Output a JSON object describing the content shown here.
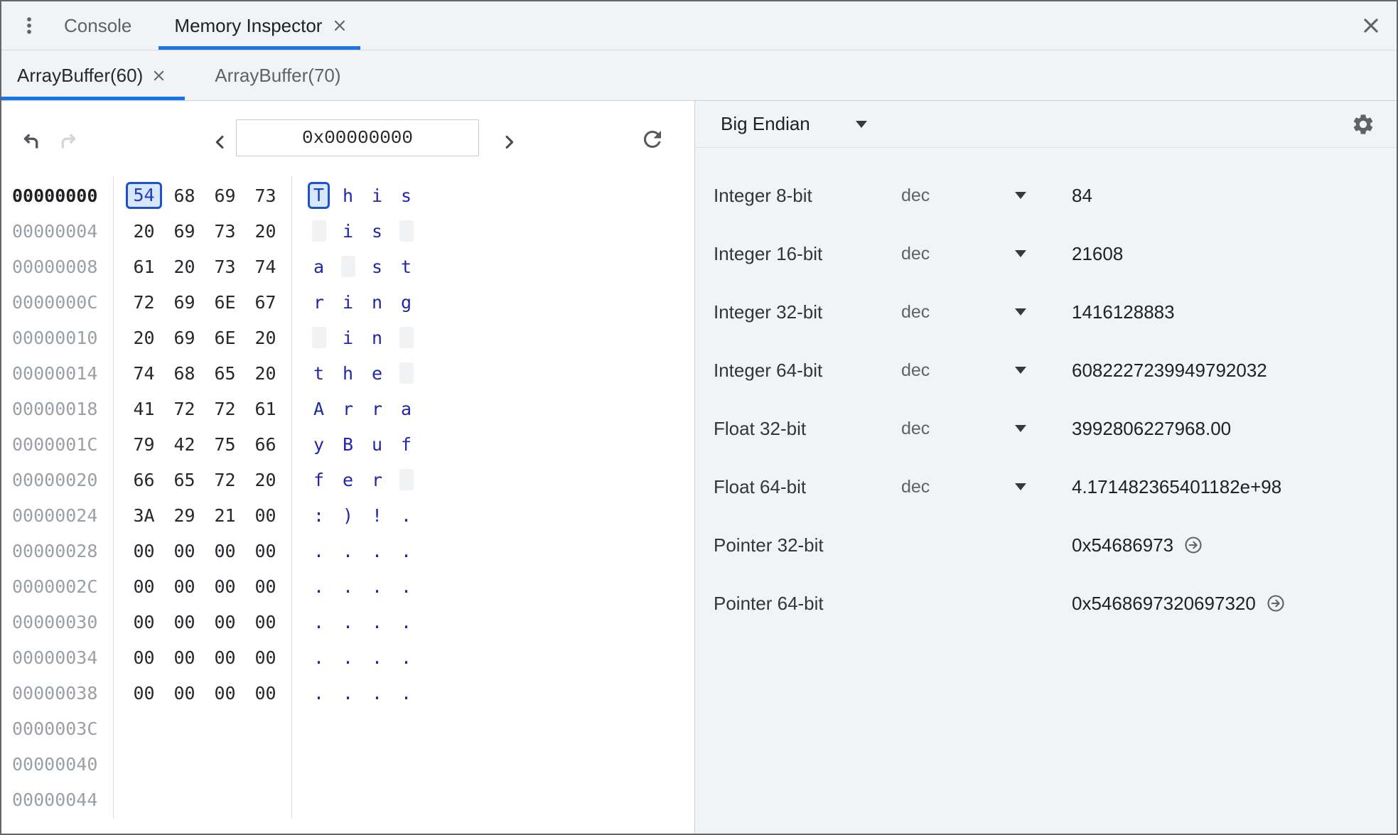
{
  "drawer_tabs": {
    "tabs": [
      {
        "label": "Console",
        "active": false,
        "closable": false
      },
      {
        "label": "Memory Inspector",
        "active": true,
        "closable": true
      }
    ]
  },
  "buffer_tabs": [
    {
      "label": "ArrayBuffer(60)",
      "active": true,
      "closable": true
    },
    {
      "label": "ArrayBuffer(70)",
      "active": false,
      "closable": false
    }
  ],
  "toolbar": {
    "address": "0x00000000"
  },
  "hex_view": {
    "rows": [
      {
        "address": "00000000",
        "bytes": [
          "54",
          "68",
          "69",
          "73"
        ],
        "ascii": [
          "T",
          "h",
          "i",
          "s"
        ],
        "selected": 0
      },
      {
        "address": "00000004",
        "bytes": [
          "20",
          "69",
          "73",
          "20"
        ],
        "ascii": [
          " ",
          "i",
          "s",
          " "
        ]
      },
      {
        "address": "00000008",
        "bytes": [
          "61",
          "20",
          "73",
          "74"
        ],
        "ascii": [
          "a",
          " ",
          "s",
          "t"
        ]
      },
      {
        "address": "0000000C",
        "bytes": [
          "72",
          "69",
          "6E",
          "67"
        ],
        "ascii": [
          "r",
          "i",
          "n",
          "g"
        ]
      },
      {
        "address": "00000010",
        "bytes": [
          "20",
          "69",
          "6E",
          "20"
        ],
        "ascii": [
          " ",
          "i",
          "n",
          " "
        ]
      },
      {
        "address": "00000014",
        "bytes": [
          "74",
          "68",
          "65",
          "20"
        ],
        "ascii": [
          "t",
          "h",
          "e",
          " "
        ]
      },
      {
        "address": "00000018",
        "bytes": [
          "41",
          "72",
          "72",
          "61"
        ],
        "ascii": [
          "A",
          "r",
          "r",
          "a"
        ]
      },
      {
        "address": "0000001C",
        "bytes": [
          "79",
          "42",
          "75",
          "66"
        ],
        "ascii": [
          "y",
          "B",
          "u",
          "f"
        ]
      },
      {
        "address": "00000020",
        "bytes": [
          "66",
          "65",
          "72",
          "20"
        ],
        "ascii": [
          "f",
          "e",
          "r",
          " "
        ]
      },
      {
        "address": "00000024",
        "bytes": [
          "3A",
          "29",
          "21",
          "00"
        ],
        "ascii": [
          ":",
          ")",
          "!",
          "."
        ]
      },
      {
        "address": "00000028",
        "bytes": [
          "00",
          "00",
          "00",
          "00"
        ],
        "ascii": [
          ".",
          ".",
          ".",
          "."
        ]
      },
      {
        "address": "0000002C",
        "bytes": [
          "00",
          "00",
          "00",
          "00"
        ],
        "ascii": [
          ".",
          ".",
          ".",
          "."
        ]
      },
      {
        "address": "00000030",
        "bytes": [
          "00",
          "00",
          "00",
          "00"
        ],
        "ascii": [
          ".",
          ".",
          ".",
          "."
        ]
      },
      {
        "address": "00000034",
        "bytes": [
          "00",
          "00",
          "00",
          "00"
        ],
        "ascii": [
          ".",
          ".",
          ".",
          "."
        ]
      },
      {
        "address": "00000038",
        "bytes": [
          "00",
          "00",
          "00",
          "00"
        ],
        "ascii": [
          ".",
          ".",
          ".",
          "."
        ]
      },
      {
        "address": "0000003C",
        "bytes": [],
        "ascii": []
      },
      {
        "address": "00000040",
        "bytes": [],
        "ascii": []
      },
      {
        "address": "00000044",
        "bytes": [],
        "ascii": []
      }
    ]
  },
  "interpreter": {
    "endianness": "Big Endian",
    "rows": [
      {
        "label": "Integer 8-bit",
        "format": "dec",
        "value": "84"
      },
      {
        "label": "Integer 16-bit",
        "format": "dec",
        "value": "21608"
      },
      {
        "label": "Integer 32-bit",
        "format": "dec",
        "value": "1416128883"
      },
      {
        "label": "Integer 64-bit",
        "format": "dec",
        "value": "6082227239949792032"
      },
      {
        "label": "Float 32-bit",
        "format": "dec",
        "value": "3992806227968.00"
      },
      {
        "label": "Float 64-bit",
        "format": "dec",
        "value": "4.171482365401182e+98"
      },
      {
        "label": "Pointer 32-bit",
        "format": null,
        "value": "0x54686973",
        "jump": true
      },
      {
        "label": "Pointer 64-bit",
        "format": null,
        "value": "0x5468697320697320",
        "jump": true
      }
    ]
  },
  "colors": {
    "accent": "#1a73e8",
    "panel_bg": "#f1f3f4",
    "ascii_text": "#2127a8",
    "selected_border": "#1d53c8",
    "selected_bg": "#d9e7fc"
  }
}
